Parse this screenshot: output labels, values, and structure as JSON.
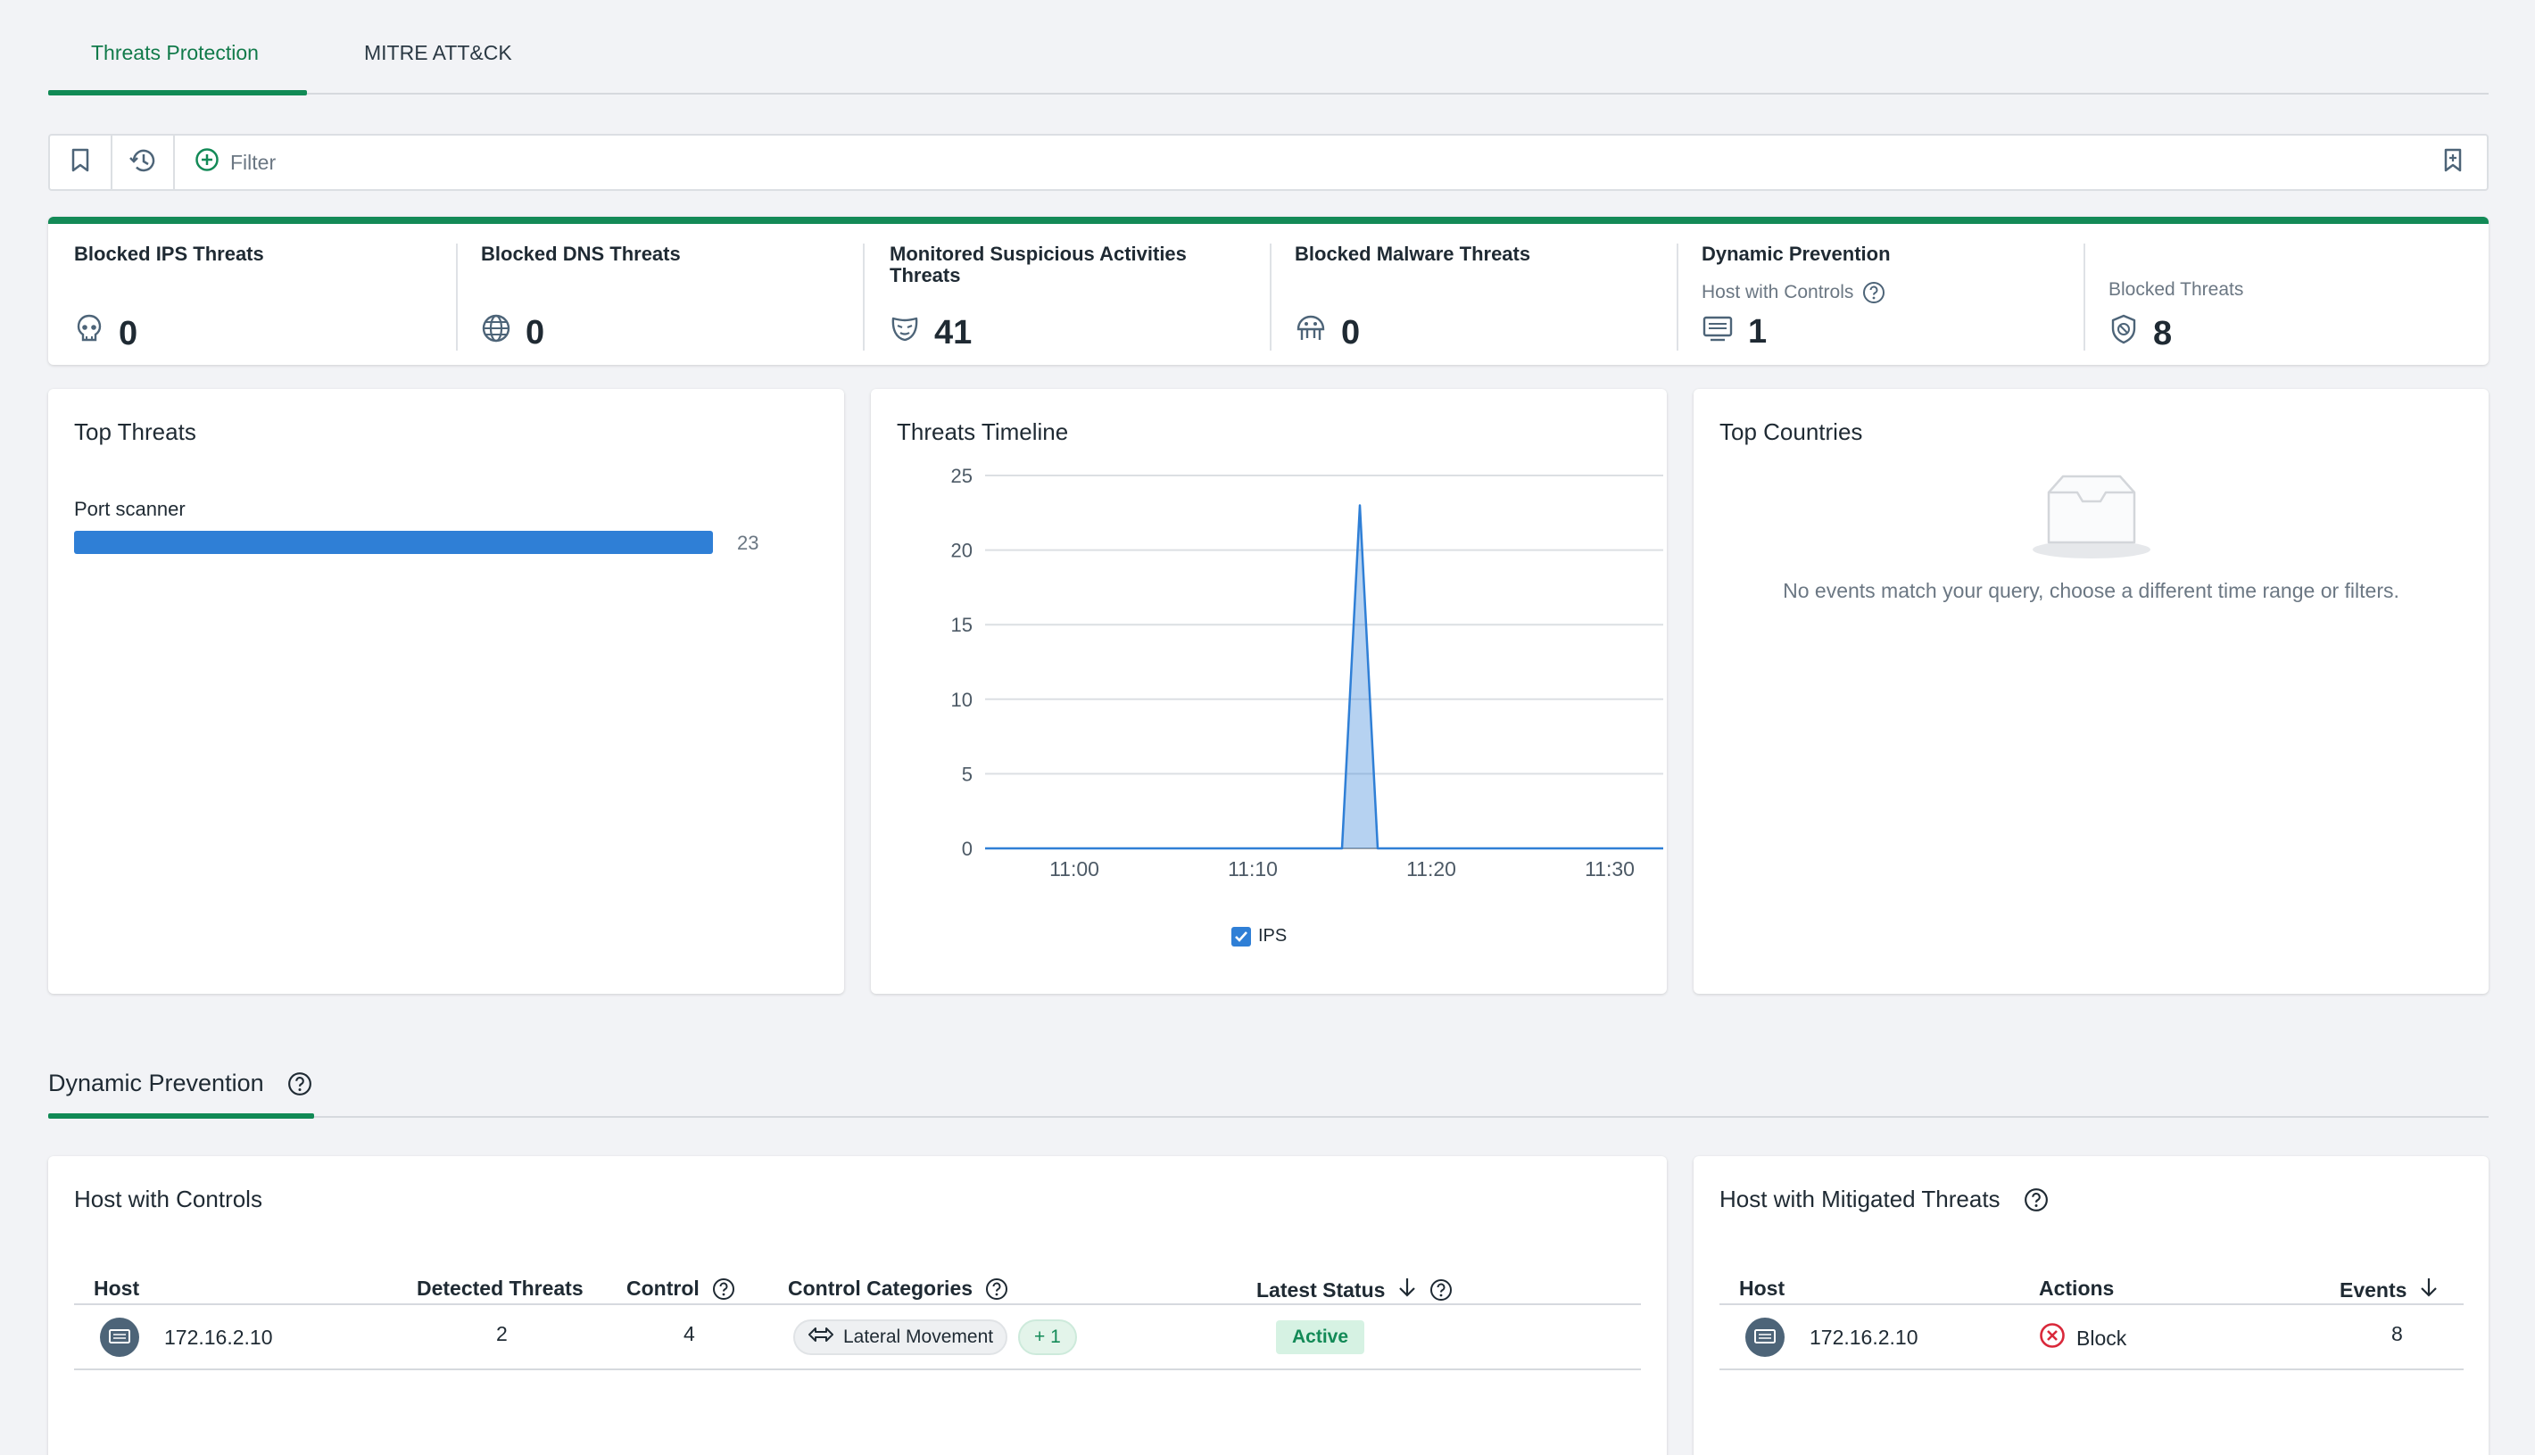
{
  "tabs": [
    {
      "label": "Threats Protection",
      "active": true
    },
    {
      "label": "MITRE ATT&CK",
      "active": false
    }
  ],
  "filter": {
    "placeholder": "Filter"
  },
  "stats": {
    "blocked_ips": {
      "title": "Blocked IPS Threats",
      "value": "0"
    },
    "blocked_dns": {
      "title": "Blocked DNS Threats",
      "value": "0"
    },
    "monitored": {
      "title": "Monitored Suspicious Activities Threats",
      "value": "41"
    },
    "blocked_malware": {
      "title": "Blocked Malware Threats",
      "value": "0"
    },
    "dynamic": {
      "title": "Dynamic Prevention",
      "host_label": "Host with Controls",
      "host_value": "1",
      "blocked_label": "Blocked Threats",
      "blocked_value": "8"
    }
  },
  "top_threats": {
    "title": "Top Threats",
    "items": [
      {
        "label": "Port scanner",
        "value": "23"
      }
    ]
  },
  "timeline": {
    "title": "Threats Timeline",
    "legend": "IPS"
  },
  "chart_data": {
    "type": "area",
    "x_ticks": [
      "11:00",
      "11:10",
      "11:20",
      "11:30"
    ],
    "y_ticks": [
      "0",
      "5",
      "10",
      "15",
      "20",
      "25"
    ],
    "ylim": [
      0,
      25
    ],
    "x_range_minutes": [
      -5,
      33
    ],
    "series": [
      {
        "name": "IPS",
        "color": "#2f7fd6",
        "points": [
          [
            -5,
            0
          ],
          [
            15,
            0
          ],
          [
            16,
            23
          ],
          [
            17,
            0
          ],
          [
            33,
            0
          ]
        ]
      }
    ],
    "legend": "bottom"
  },
  "top_countries": {
    "title": "Top Countries",
    "empty_text": "No events match your query, choose a different time range or filters."
  },
  "section": {
    "title": "Dynamic Prevention"
  },
  "hosts_controls": {
    "title": "Host with Controls",
    "columns": [
      "Host",
      "Detected Threats",
      "Control",
      "Control Categories",
      "Latest Status"
    ],
    "rows": [
      {
        "host": "172.16.2.10",
        "detected": "2",
        "control": "4",
        "category": "Lateral Movement",
        "extra": "+ 1",
        "status": "Active"
      }
    ]
  },
  "hosts_mitigated": {
    "title": "Host with Mitigated Threats",
    "columns": [
      "Host",
      "Actions",
      "Events"
    ],
    "rows": [
      {
        "host": "172.16.2.10",
        "action": "Block",
        "events": "8"
      }
    ]
  },
  "colors": {
    "accent": "#118a55",
    "bar": "#2f7fd6",
    "danger": "#d9283a"
  }
}
